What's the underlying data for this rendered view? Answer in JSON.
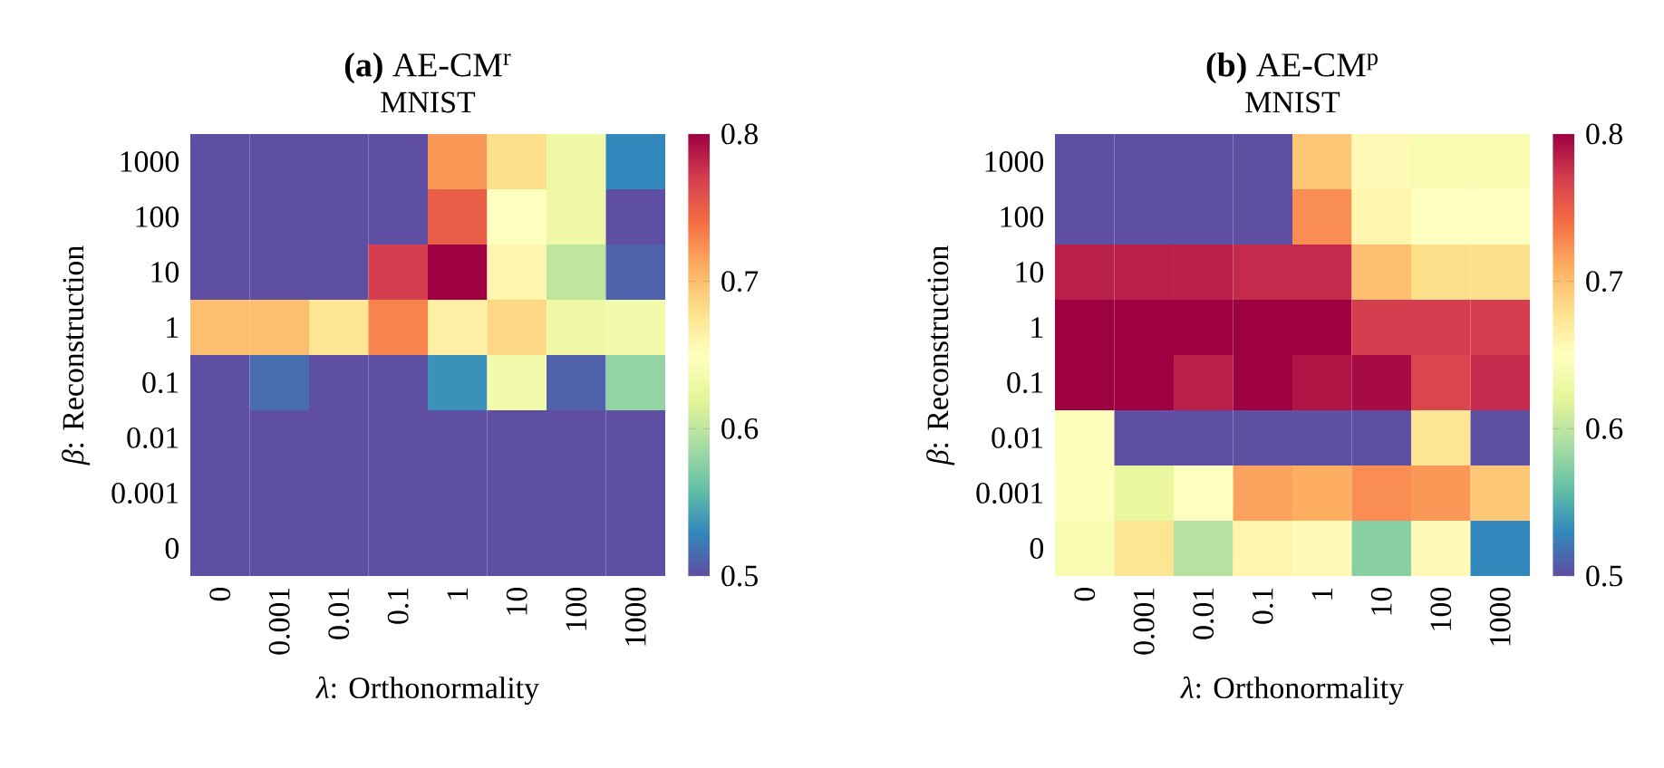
{
  "chart_data": [
    {
      "type": "heatmap",
      "title": "**(a)** AE-CM$^{r}$",
      "subtitle": "MNIST",
      "xlabel": "*λ*: Orthonormality",
      "ylabel": "*β*: Reconstruction",
      "categories": [
        "0",
        "0.001",
        "0.01",
        "0.1",
        "1",
        "10",
        "100",
        "1000"
      ],
      "y_categories": [
        "1000",
        "100",
        "10",
        "1",
        "0.1",
        "0.01",
        "0.001",
        "0"
      ],
      "cells": [
        [
          0.5,
          0.5,
          0.5,
          0.5,
          0.72,
          0.68,
          0.63,
          0.53
        ],
        [
          0.5,
          0.5,
          0.5,
          0.5,
          0.75,
          0.65,
          0.63,
          0.5
        ],
        [
          0.5,
          0.5,
          0.5,
          0.77,
          0.8,
          0.66,
          0.6,
          0.51
        ],
        [
          0.7,
          0.7,
          0.675,
          0.73,
          0.665,
          0.685,
          0.63,
          0.635
        ],
        [
          0.5,
          0.515,
          0.5,
          0.5,
          0.535,
          0.635,
          0.51,
          0.58
        ],
        [
          0.5,
          0.5,
          0.5,
          0.5,
          0.5,
          0.5,
          0.5,
          0.5
        ],
        [
          0.5,
          0.5,
          0.5,
          0.5,
          0.5,
          0.5,
          0.5,
          0.5
        ],
        [
          0.5,
          0.5,
          0.5,
          0.5,
          0.5,
          0.5,
          0.5,
          0.5
        ]
      ],
      "clim": [
        0.5,
        0.8
      ],
      "cticks": [
        0.5,
        0.6,
        0.7,
        0.8
      ]
    },
    {
      "type": "heatmap",
      "title": "**(b)** AE-CM$^{p}$",
      "subtitle": "MNIST",
      "xlabel": "*λ*: Orthonormality",
      "ylabel": "*β*: Reconstruction",
      "categories": [
        "0",
        "0.001",
        "0.01",
        "0.1",
        "1",
        "10",
        "100",
        "1000"
      ],
      "y_categories": [
        "1000",
        "100",
        "10",
        "1",
        "0.1",
        "0.01",
        "0.001",
        "0"
      ],
      "cells": [
        [
          0.5,
          0.5,
          0.5,
          0.5,
          0.695,
          0.655,
          0.64,
          0.64
        ],
        [
          0.5,
          0.5,
          0.5,
          0.5,
          0.725,
          0.66,
          0.65,
          0.65
        ],
        [
          0.785,
          0.785,
          0.785,
          0.78,
          0.78,
          0.7,
          0.68,
          0.68
        ],
        [
          0.8,
          0.8,
          0.8,
          0.8,
          0.8,
          0.77,
          0.77,
          0.77
        ],
        [
          0.8,
          0.8,
          0.785,
          0.8,
          0.79,
          0.795,
          0.765,
          0.78
        ],
        [
          0.645,
          0.5,
          0.5,
          0.5,
          0.5,
          0.5,
          0.675,
          0.5
        ],
        [
          0.648,
          0.625,
          0.65,
          0.715,
          0.71,
          0.725,
          0.72,
          0.695
        ],
        [
          0.64,
          0.675,
          0.595,
          0.66,
          0.655,
          0.575,
          0.655,
          0.53
        ]
      ],
      "clim": [
        0.5,
        0.8
      ],
      "cticks": [
        0.5,
        0.6,
        0.7,
        0.8
      ]
    }
  ]
}
